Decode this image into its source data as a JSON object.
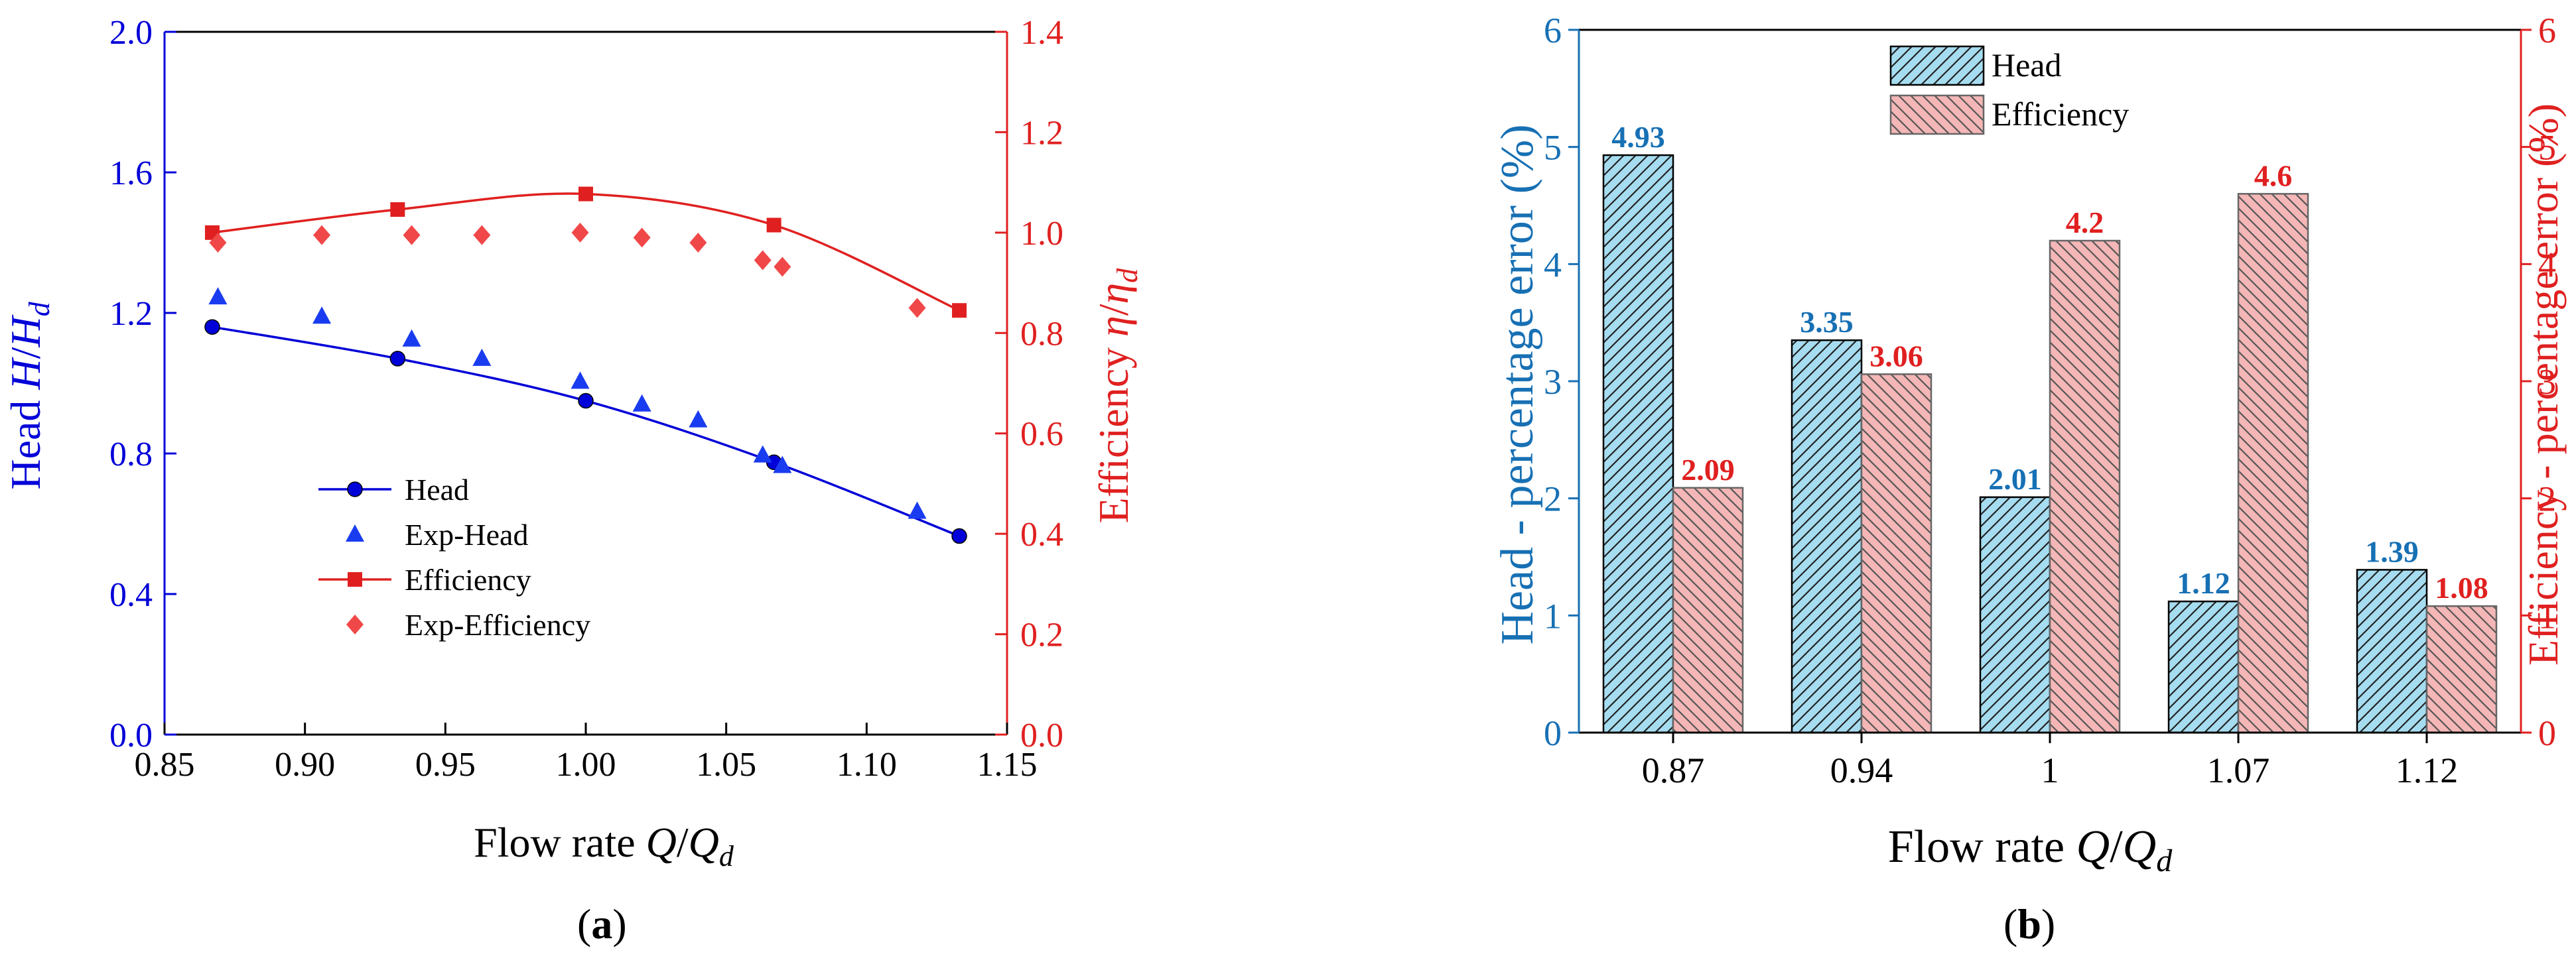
{
  "colors": {
    "head": "#0000d8",
    "efficiency": "#e02020",
    "head_bar_fill": "#a6dcf0",
    "eff_bar_fill": "#f4b6b6",
    "bar_label_blue": "#1770b4",
    "axis_blue_b": "#1770b4",
    "axis_red": "#e02020"
  },
  "chart_data": [
    {
      "panel": "a",
      "type": "line",
      "panel_label": "(a)",
      "xlabel": {
        "prefix": "Flow rate ",
        "var": "Q",
        "sep": "/",
        "var2": "Q",
        "sub": "d"
      },
      "ylabel_left": {
        "prefix": "Head ",
        "var": "H",
        "sep": "/",
        "var2": "H",
        "sub": "d"
      },
      "ylabel_right": {
        "prefix": "Efficiency ",
        "var": "η",
        "sep": "/",
        "var2": "η",
        "sub": "d"
      },
      "xlim": [
        0.85,
        1.15
      ],
      "ylim_left": [
        0.0,
        2.0
      ],
      "ylim_right": [
        0.0,
        1.4
      ],
      "xticks": [
        "0.85",
        "0.90",
        "0.95",
        "1.00",
        "1.05",
        "1.10",
        "1.15"
      ],
      "yticks_left": [
        "0.0",
        "0.4",
        "0.8",
        "1.2",
        "1.6",
        "2.0"
      ],
      "yticks_right": [
        "0.0",
        "0.2",
        "0.4",
        "0.6",
        "0.8",
        "1.0",
        "1.2",
        "1.4"
      ],
      "legend": {
        "position": "center-left",
        "entries": [
          "Head",
          "Exp-Head",
          "Efficiency",
          "Exp-Efficiency"
        ]
      },
      "series": [
        {
          "name": "Head",
          "axis": "left",
          "marker": "circle",
          "line": true,
          "x": [
            0.867,
            0.933,
            1.0,
            1.067,
            1.133
          ],
          "y": [
            1.16,
            1.07,
            0.95,
            0.775,
            0.565
          ]
        },
        {
          "name": "Exp-Head",
          "axis": "left",
          "marker": "triangle",
          "line": false,
          "x": [
            0.869,
            0.906,
            0.938,
            0.963,
            0.998,
            1.02,
            1.04,
            1.063,
            1.07,
            1.118
          ],
          "y": [
            1.245,
            1.19,
            1.125,
            1.07,
            1.005,
            0.94,
            0.895,
            0.795,
            0.765,
            0.635
          ]
        },
        {
          "name": "Efficiency",
          "axis": "right",
          "marker": "square",
          "line": true,
          "x": [
            0.867,
            0.933,
            1.0,
            1.067,
            1.133
          ],
          "y": [
            1.0,
            1.046,
            1.077,
            1.015,
            0.845
          ]
        },
        {
          "name": "Exp-Efficiency",
          "axis": "right",
          "marker": "diamond",
          "line": false,
          "x": [
            0.869,
            0.906,
            0.938,
            0.963,
            0.998,
            1.02,
            1.04,
            1.063,
            1.07,
            1.118
          ],
          "y": [
            0.98,
            0.995,
            0.995,
            0.995,
            1.0,
            0.99,
            0.98,
            0.945,
            0.932,
            0.85
          ]
        }
      ]
    },
    {
      "panel": "b",
      "type": "bar",
      "panel_label": "(b)",
      "xlabel": {
        "prefix": "Flow rate ",
        "var": "Q",
        "sep": "/",
        "var2": "Q",
        "sub": "d"
      },
      "ylabel_left": "Head - percentage error (%)",
      "ylabel_right": "Efficiency - percentage error (%)",
      "categories": [
        "0.87",
        "0.94",
        "1",
        "1.07",
        "1.12"
      ],
      "ylim": [
        0,
        6
      ],
      "yticks": [
        "0",
        "1",
        "2",
        "3",
        "4",
        "5",
        "6"
      ],
      "legend": {
        "position": "top-center",
        "entries": [
          "Head",
          "Efficiency"
        ]
      },
      "series": [
        {
          "name": "Head",
          "values": [
            4.93,
            3.35,
            2.01,
            1.12,
            1.39
          ],
          "labels": [
            "4.93",
            "3.35",
            "2.01",
            "1.12",
            "1.39"
          ]
        },
        {
          "name": "Efficiency",
          "values": [
            2.09,
            3.06,
            4.2,
            4.6,
            1.08
          ],
          "labels": [
            "2.09",
            "3.06",
            "4.2",
            "4.6",
            "1.08"
          ]
        }
      ]
    }
  ]
}
